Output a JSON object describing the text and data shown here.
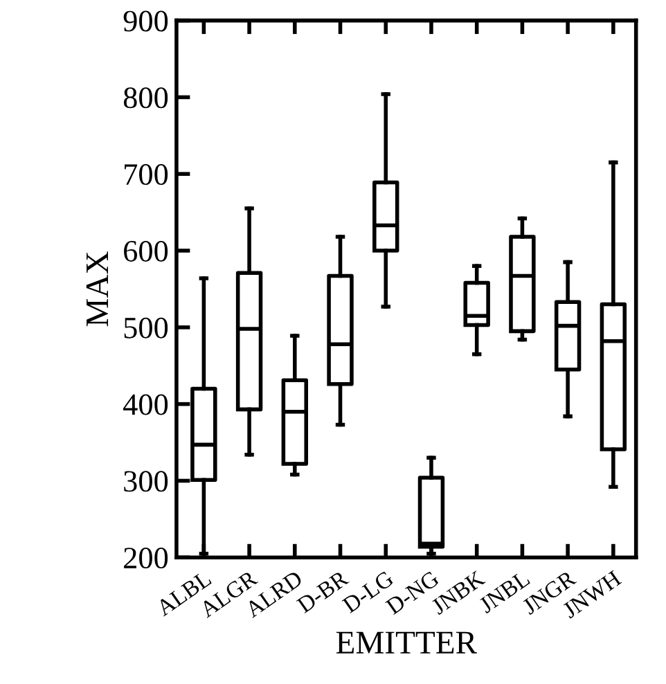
{
  "chart_data": {
    "type": "box",
    "xlabel": "EMITTER",
    "ylabel": "MAX",
    "categories": [
      "ALBL",
      "ALGR",
      "ALRD",
      "D-BR",
      "D-LG",
      "D-NG",
      "JNBK",
      "JNBL",
      "JNGR",
      "JNWH"
    ],
    "ylim": [
      200,
      900
    ],
    "yticks": [
      200,
      300,
      400,
      500,
      600,
      700,
      800,
      900
    ],
    "grid": false,
    "boxes": [
      {
        "low": 205,
        "q1": 301,
        "median": 347,
        "q3": 420,
        "high": 564
      },
      {
        "low": 334,
        "q1": 393,
        "median": 498,
        "q3": 571,
        "high": 655
      },
      {
        "low": 308,
        "q1": 322,
        "median": 390,
        "q3": 431,
        "high": 489
      },
      {
        "low": 373,
        "q1": 426,
        "median": 478,
        "q3": 567,
        "high": 618
      },
      {
        "low": 527,
        "q1": 600,
        "median": 633,
        "q3": 689,
        "high": 804
      },
      {
        "low": 205,
        "q1": 214,
        "median": 218,
        "q3": 304,
        "high": 330
      },
      {
        "low": 465,
        "q1": 503,
        "median": 515,
        "q3": 558,
        "high": 580
      },
      {
        "low": 484,
        "q1": 495,
        "median": 567,
        "q3": 618,
        "high": 642
      },
      {
        "low": 384,
        "q1": 445,
        "median": 502,
        "q3": 533,
        "high": 585
      },
      {
        "low": 292,
        "q1": 341,
        "median": 482,
        "q3": 530,
        "high": 715
      }
    ]
  }
}
